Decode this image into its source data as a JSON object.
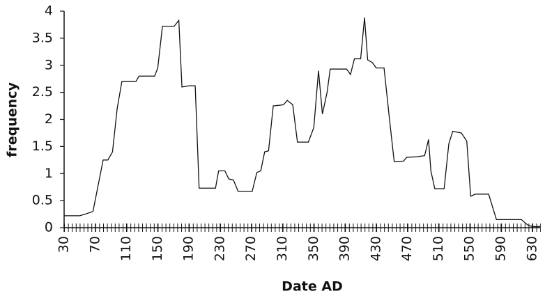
{
  "chart_data": {
    "type": "line",
    "x_label": "Date AD",
    "y_label": "frequency",
    "x": [
      30,
      50,
      57,
      67,
      80,
      86,
      92,
      98,
      104,
      122,
      126,
      146,
      150,
      156,
      171,
      177,
      181,
      190,
      198,
      203,
      224,
      228,
      236,
      241,
      247,
      253,
      271,
      277,
      282,
      287,
      292,
      298,
      311,
      316,
      323,
      329,
      343,
      350,
      356,
      361,
      367,
      371,
      392,
      397,
      402,
      410,
      415,
      419,
      425,
      430,
      440,
      447,
      453,
      465,
      469,
      482,
      492,
      497,
      500,
      505,
      517,
      523,
      528,
      539,
      546,
      551,
      557,
      574,
      584,
      616,
      624,
      630,
      640
    ],
    "values": [
      0.22,
      0.22,
      0.25,
      0.3,
      1.25,
      1.25,
      1.4,
      2.2,
      2.7,
      2.7,
      2.8,
      2.8,
      2.95,
      3.72,
      3.72,
      3.83,
      2.6,
      2.62,
      2.62,
      0.73,
      0.73,
      1.05,
      1.05,
      0.9,
      0.88,
      0.67,
      0.67,
      1.02,
      1.05,
      1.4,
      1.42,
      2.25,
      2.27,
      2.35,
      2.27,
      1.58,
      1.58,
      1.85,
      2.9,
      2.1,
      2.5,
      2.93,
      2.93,
      2.83,
      3.12,
      3.12,
      3.88,
      3.1,
      3.05,
      2.95,
      2.95,
      2.0,
      1.22,
      1.23,
      1.3,
      1.31,
      1.33,
      1.63,
      1.05,
      0.72,
      0.72,
      1.55,
      1.78,
      1.75,
      1.6,
      0.58,
      0.62,
      0.62,
      0.15,
      0.15,
      0.05,
      0.02,
      0.02
    ],
    "color": "#111111",
    "xlim": [
      30,
      640
    ],
    "xticks": [
      30,
      70,
      110,
      150,
      190,
      230,
      270,
      310,
      350,
      390,
      430,
      470,
      510,
      550,
      590,
      630
    ],
    "ylim": [
      0,
      4
    ],
    "yticks": [
      0,
      0.5,
      1,
      1.5,
      2,
      2.5,
      3,
      3.5,
      4
    ]
  }
}
